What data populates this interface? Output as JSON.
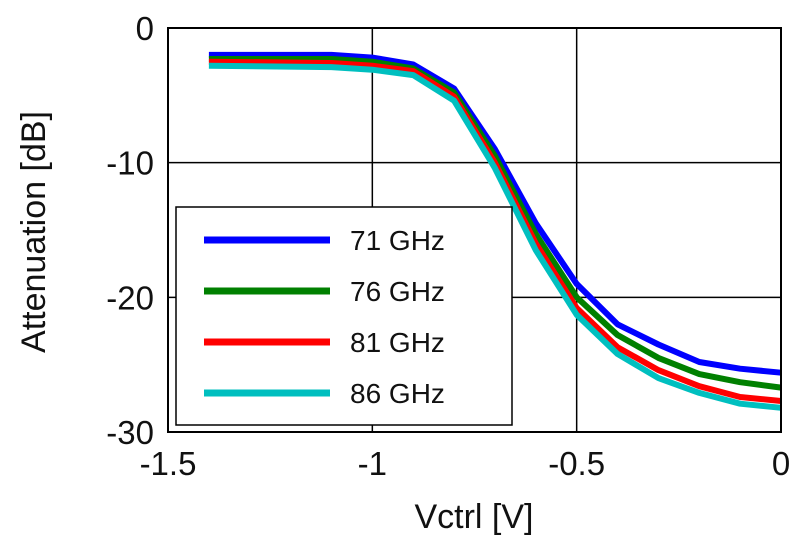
{
  "chart_data": {
    "type": "line",
    "xlabel": "Vctrl [V]",
    "ylabel": "Attenuation [dB]",
    "xlim": [
      -1.5,
      0
    ],
    "ylim": [
      -30,
      0
    ],
    "x_ticks": [
      "-1.5",
      "-1",
      "-0.5",
      "0"
    ],
    "y_ticks": [
      "0",
      "-10",
      "-20",
      "-30"
    ],
    "grid": true,
    "legend_position": "left",
    "series": [
      {
        "name": "71 GHz",
        "color": "#0000ff",
        "x": [
          -1.4,
          -1.1,
          -1.0,
          -0.9,
          -0.8,
          -0.7,
          -0.6,
          -0.5,
          -0.4,
          -0.3,
          -0.2,
          -0.1,
          0.0
        ],
        "y": [
          -2.0,
          -2.0,
          -2.2,
          -2.7,
          -4.5,
          -9.0,
          -14.5,
          -19.0,
          -22.0,
          -23.5,
          -24.8,
          -25.3,
          -25.6
        ]
      },
      {
        "name": "76 GHz",
        "color": "#008000",
        "x": [
          -1.4,
          -1.1,
          -1.0,
          -0.9,
          -0.8,
          -0.7,
          -0.6,
          -0.5,
          -0.4,
          -0.3,
          -0.2,
          -0.1,
          0.0
        ],
        "y": [
          -2.3,
          -2.3,
          -2.5,
          -3.0,
          -4.8,
          -9.5,
          -15.3,
          -20.0,
          -22.8,
          -24.5,
          -25.7,
          -26.3,
          -26.7
        ]
      },
      {
        "name": "81 GHz",
        "color": "#ff0000",
        "x": [
          -1.4,
          -1.1,
          -1.0,
          -0.9,
          -0.8,
          -0.7,
          -0.6,
          -0.5,
          -0.4,
          -0.3,
          -0.2,
          -0.1,
          0.0
        ],
        "y": [
          -2.5,
          -2.6,
          -2.8,
          -3.2,
          -5.1,
          -10.0,
          -16.0,
          -20.8,
          -23.7,
          -25.4,
          -26.6,
          -27.4,
          -27.7
        ]
      },
      {
        "name": "86 GHz",
        "color": "#00bfbf",
        "x": [
          -1.4,
          -1.1,
          -1.0,
          -0.9,
          -0.8,
          -0.7,
          -0.6,
          -0.5,
          -0.4,
          -0.3,
          -0.2,
          -0.1,
          0.0
        ],
        "y": [
          -2.8,
          -2.9,
          -3.1,
          -3.5,
          -5.4,
          -10.4,
          -16.5,
          -21.3,
          -24.2,
          -26.0,
          -27.1,
          -27.9,
          -28.2
        ]
      }
    ]
  }
}
